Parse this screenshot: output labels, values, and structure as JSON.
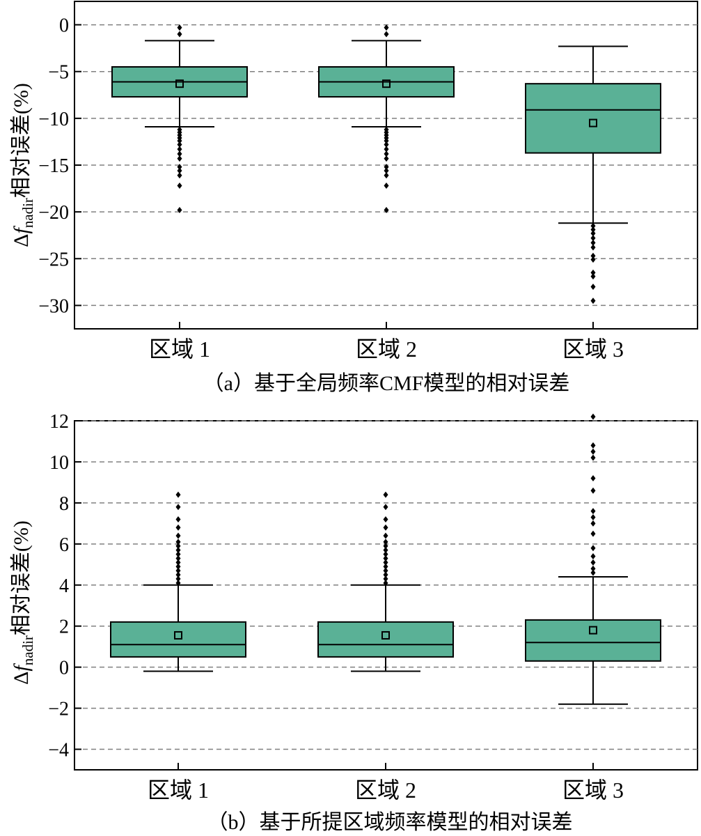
{
  "colors": {
    "box_fill": "#5ab196",
    "grid": "#808080",
    "line": "#000000"
  },
  "chart_data": [
    {
      "type": "box",
      "caption": "（a）基于全局频率CMF模型的相对误差",
      "ylabel": {
        "delta": "Δ",
        "f": "f",
        "sub": "nadir",
        "rest": "相对误差(%)"
      },
      "ylim": [
        -32.5,
        2.5
      ],
      "yticks": [
        0,
        -5,
        -10,
        -15,
        -20,
        -25,
        -30
      ],
      "ytick_labels": [
        "0",
        "−5",
        "−10",
        "−15",
        "−20",
        "−25",
        "−30"
      ],
      "grid": "horizontal dashed",
      "categories": [
        "区域 1",
        "区域 2",
        "区域 3"
      ],
      "boxes": [
        {
          "whisker_low": -10.9,
          "q1": -7.7,
          "median": -6.1,
          "q3": -4.5,
          "whisker_high": -1.7,
          "mean": -6.3,
          "outliers": [
            -0.3,
            -1.0,
            -11.2,
            -11.5,
            -11.8,
            -12.1,
            -12.4,
            -12.8,
            -13.3,
            -13.8,
            -14.3,
            -15.2,
            -15.6,
            -16.1,
            -17.2,
            -19.8
          ]
        },
        {
          "whisker_low": -10.9,
          "q1": -7.7,
          "median": -6.1,
          "q3": -4.5,
          "whisker_high": -1.7,
          "mean": -6.3,
          "outliers": [
            -0.3,
            -1.0,
            -11.2,
            -11.5,
            -11.8,
            -12.1,
            -12.4,
            -12.8,
            -13.3,
            -13.8,
            -14.3,
            -15.2,
            -15.6,
            -16.1,
            -17.2,
            -19.8
          ]
        },
        {
          "whisker_low": -21.2,
          "q1": -13.7,
          "median": -9.1,
          "q3": -6.3,
          "whisker_high": -2.3,
          "mean": -10.5,
          "outliers": [
            -21.5,
            -21.9,
            -22.3,
            -22.8,
            -23.3,
            -23.8,
            -24.7,
            -25.1,
            -26.5,
            -26.9,
            -28.0,
            -29.5
          ]
        }
      ]
    },
    {
      "type": "box",
      "caption": "（b）基于所提区域频率模型的相对误差",
      "ylabel": {
        "delta": "Δ",
        "f": "f",
        "sub": "nadir",
        "rest": "相对误差(%)"
      },
      "ylim": [
        -5,
        12
      ],
      "yticks": [
        12,
        10,
        8,
        6,
        4,
        2,
        0,
        -2,
        -4
      ],
      "ytick_labels": [
        "12",
        "10",
        "8",
        "6",
        "4",
        "2",
        "0",
        "−2",
        "−4"
      ],
      "grid": "horizontal dashed",
      "categories": [
        "区域 1",
        "区域 2",
        "区域 3"
      ],
      "boxes": [
        {
          "whisker_low": -0.2,
          "q1": 0.5,
          "median": 1.1,
          "q3": 2.2,
          "whisker_high": 4.0,
          "mean": 1.55,
          "outliers": [
            4.1,
            4.3,
            4.5,
            4.7,
            4.9,
            5.1,
            5.3,
            5.5,
            5.7,
            5.9,
            6.1,
            6.4,
            6.8,
            7.2,
            7.8,
            8.4
          ]
        },
        {
          "whisker_low": -0.2,
          "q1": 0.5,
          "median": 1.1,
          "q3": 2.2,
          "whisker_high": 4.0,
          "mean": 1.55,
          "outliers": [
            4.1,
            4.3,
            4.5,
            4.7,
            4.9,
            5.1,
            5.3,
            5.5,
            5.7,
            5.9,
            6.1,
            6.4,
            6.8,
            7.2,
            7.8,
            8.4
          ]
        },
        {
          "whisker_low": -1.8,
          "q1": 0.3,
          "median": 1.2,
          "q3": 2.3,
          "whisker_high": 4.4,
          "mean": 1.8,
          "outliers": [
            4.6,
            4.8,
            5.1,
            5.4,
            5.8,
            6.5,
            7.0,
            7.3,
            7.6,
            8.6,
            9.2,
            10.2,
            10.5,
            10.8,
            12.2
          ]
        }
      ]
    }
  ]
}
